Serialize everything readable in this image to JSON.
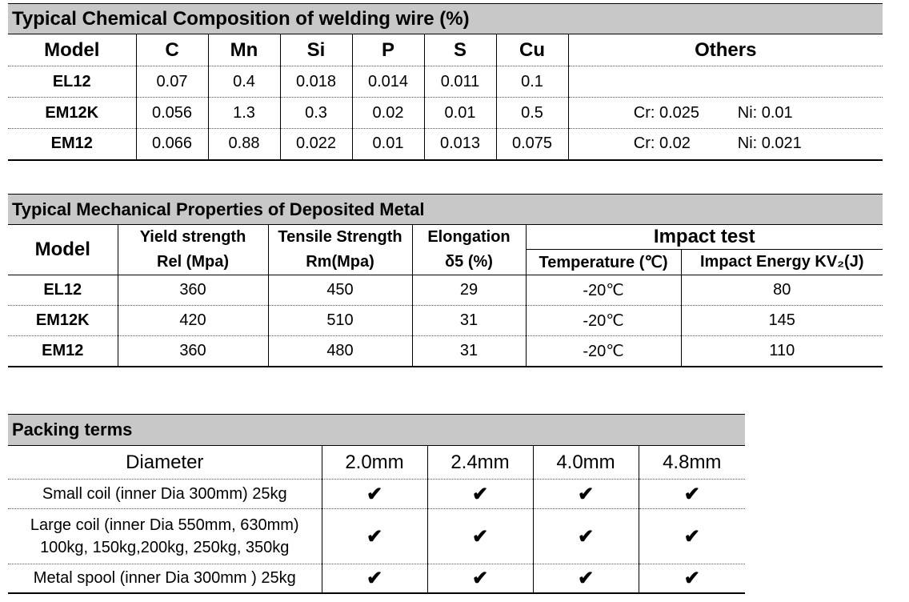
{
  "chemical": {
    "title": "Typical Chemical Composition of welding wire (%)",
    "headers": [
      "Model",
      "C",
      "Mn",
      "Si",
      "P",
      "S",
      "Cu",
      "Others"
    ],
    "rows": [
      {
        "model": "EL12",
        "c": "0.07",
        "mn": "0.4",
        "si": "0.018",
        "p": "0.014",
        "s": "0.011",
        "cu": "0.1",
        "others_cr": "",
        "others_ni": ""
      },
      {
        "model": "EM12K",
        "c": "0.056",
        "mn": "1.3",
        "si": "0.3",
        "p": "0.02",
        "s": "0.01",
        "cu": "0.5",
        "others_cr": "Cr: 0.025",
        "others_ni": "Ni: 0.01"
      },
      {
        "model": "EM12",
        "c": "0.066",
        "mn": "0.88",
        "si": "0.022",
        "p": "0.01",
        "s": "0.013",
        "cu": "0.075",
        "others_cr": "Cr: 0.02",
        "others_ni": "Ni: 0.021"
      }
    ]
  },
  "mechanical": {
    "title": "Typical Mechanical Properties of Deposited Metal",
    "model_header": "Model",
    "yield_header_1": "Yield strength",
    "yield_header_2": "Rel (Mpa)",
    "tensile_header_1": "Tensile Strength",
    "tensile_header_2": "Rm(Mpa)",
    "elong_header_1": "Elongation",
    "elong_header_2": "δ5 (%)",
    "impact_header": "Impact test",
    "temp_header": "Temperature (℃)",
    "energy_header": "Impact Energy KV₂(J)",
    "rows": [
      {
        "model": "EL12",
        "yield": "360",
        "tensile": "450",
        "elong": "29",
        "temp": "-20℃",
        "energy": "80"
      },
      {
        "model": "EM12K",
        "yield": "420",
        "tensile": "510",
        "elong": "31",
        "temp": "-20℃",
        "energy": "145"
      },
      {
        "model": "EM12",
        "yield": "360",
        "tensile": "480",
        "elong": "31",
        "temp": "-20℃",
        "energy": "110"
      }
    ]
  },
  "packing": {
    "title": "Packing terms",
    "diameter_header": "Diameter",
    "sizes": [
      "2.0mm",
      "2.4mm",
      "4.0mm",
      "4.8mm"
    ],
    "check_symbol": "✔",
    "rows": [
      {
        "label_1": "Small coil (inner Dia 300mm) 25kg",
        "label_2": ""
      },
      {
        "label_1": "Large coil (inner Dia 550mm, 630mm)",
        "label_2": "100kg, 150kg,200kg, 250kg, 350kg"
      },
      {
        "label_1": "Metal spool (inner Dia 300mm ) 25kg",
        "label_2": ""
      }
    ]
  }
}
